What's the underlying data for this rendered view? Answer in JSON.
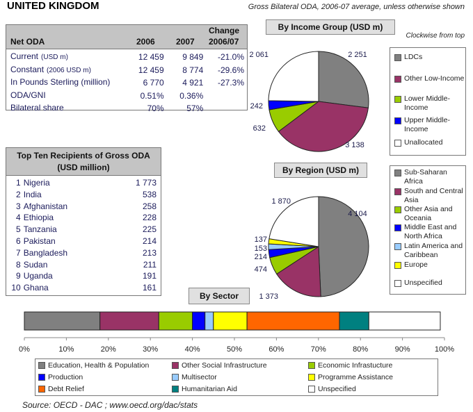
{
  "title": "UNITED KINGDOM",
  "subtitle": "Gross Bilateral ODA, 2006-07 average, unless otherwise shown",
  "net_oda": {
    "head_label": "Net ODA",
    "head_2006": "2006",
    "head_2007": "2007",
    "head_change": "Change",
    "head_change_period": "2006/07",
    "rows": [
      {
        "label": "Current",
        "unit": "(USD m)",
        "v2006": "12 459",
        "v2007": "9 849",
        "change": "-21.0%"
      },
      {
        "label": "Constant",
        "unit": "(2006 USD m)",
        "v2006": "12 459",
        "v2007": "8 774",
        "change": "-29.6%"
      },
      {
        "label": "In Pounds Sterling (million)",
        "unit": "",
        "v2006": "6 770",
        "v2007": "4 921",
        "change": "-27.3%"
      },
      {
        "label": "ODA/GNI",
        "unit": "",
        "v2006": "0.51%",
        "v2007": "0.36%",
        "change": ""
      },
      {
        "label": "Bilateral share",
        "unit": "",
        "v2006": "70%",
        "v2007": "57%",
        "change": ""
      }
    ]
  },
  "top_recipients": {
    "title_line1": "Top Ten Recipients of Gross ODA",
    "title_line2": "(USD million)",
    "rows": [
      {
        "rank": "1",
        "name": "Nigeria",
        "value": "1 773"
      },
      {
        "rank": "2",
        "name": "India",
        "value": "538"
      },
      {
        "rank": "3",
        "name": "Afghanistan",
        "value": "258"
      },
      {
        "rank": "4",
        "name": "Ethiopia",
        "value": "228"
      },
      {
        "rank": "5",
        "name": "Tanzania",
        "value": "225"
      },
      {
        "rank": "6",
        "name": "Pakistan",
        "value": "214"
      },
      {
        "rank": "7",
        "name": "Bangladesh",
        "value": "213"
      },
      {
        "rank": "8",
        "name": "Sudan",
        "value": "211"
      },
      {
        "rank": "9",
        "name": "Uganda",
        "value": "191"
      },
      {
        "rank": "10",
        "name": "Ghana",
        "value": "161"
      }
    ]
  },
  "clockwise_note": "Clockwise from top",
  "chart_data": [
    {
      "type": "pie",
      "title": "By Income Group (USD m)",
      "labels": [
        "LDCs",
        "Other Low-Income",
        "Lower Middle-Income",
        "Upper Middle-Income",
        "Unallocated"
      ],
      "values": [
        2251,
        3138,
        632,
        242,
        2061
      ],
      "value_labels": [
        "2 251",
        "3 138",
        "632",
        "242",
        "2 061"
      ],
      "colors": [
        "#808080",
        "#993366",
        "#99cc00",
        "#0000ff",
        "#ffffff"
      ],
      "direction": "clockwise from top",
      "legend": "right"
    },
    {
      "type": "pie",
      "title": "By Region (USD m)",
      "labels": [
        "Sub-Saharan Africa",
        "South and Central Asia",
        "Other Asia and Oceania",
        "Middle East and North Africa",
        "Latin America and Caribbean",
        "Europe",
        "Unspecified"
      ],
      "values": [
        4104,
        1373,
        474,
        214,
        153,
        137,
        1870
      ],
      "value_labels": [
        "4 104",
        "1 373",
        "474",
        "214",
        "153",
        "137",
        "1 870"
      ],
      "colors": [
        "#808080",
        "#993366",
        "#99cc00",
        "#0000ff",
        "#99ccff",
        "#ffff00",
        "#ffffff"
      ],
      "direction": "clockwise from top",
      "legend": "right"
    },
    {
      "type": "bar",
      "orientation": "horizontal-stacked-100",
      "title": "By Sector",
      "labels": [
        "Education, Health & Population",
        "Other Social Infrastructure",
        "Economic Infrastucture",
        "Production",
        "Multisector",
        "Programme Assistance",
        "Debt Relief",
        "Humanitarian Aid",
        "Unspecified"
      ],
      "values": [
        18,
        14,
        8,
        3,
        2,
        8,
        22,
        7,
        17
      ],
      "colors": [
        "#808080",
        "#993366",
        "#99cc00",
        "#0000ff",
        "#99ccff",
        "#ffff00",
        "#ff6600",
        "#008080",
        "#ffffff"
      ],
      "xticks": [
        "0%",
        "10%",
        "20%",
        "30%",
        "40%",
        "50%",
        "60%",
        "70%",
        "80%",
        "90%",
        "100%"
      ],
      "xlim": [
        0,
        100
      ],
      "legend": "bottom"
    }
  ],
  "source": "Source: OECD - DAC ; www.oecd.org/dac/stats"
}
